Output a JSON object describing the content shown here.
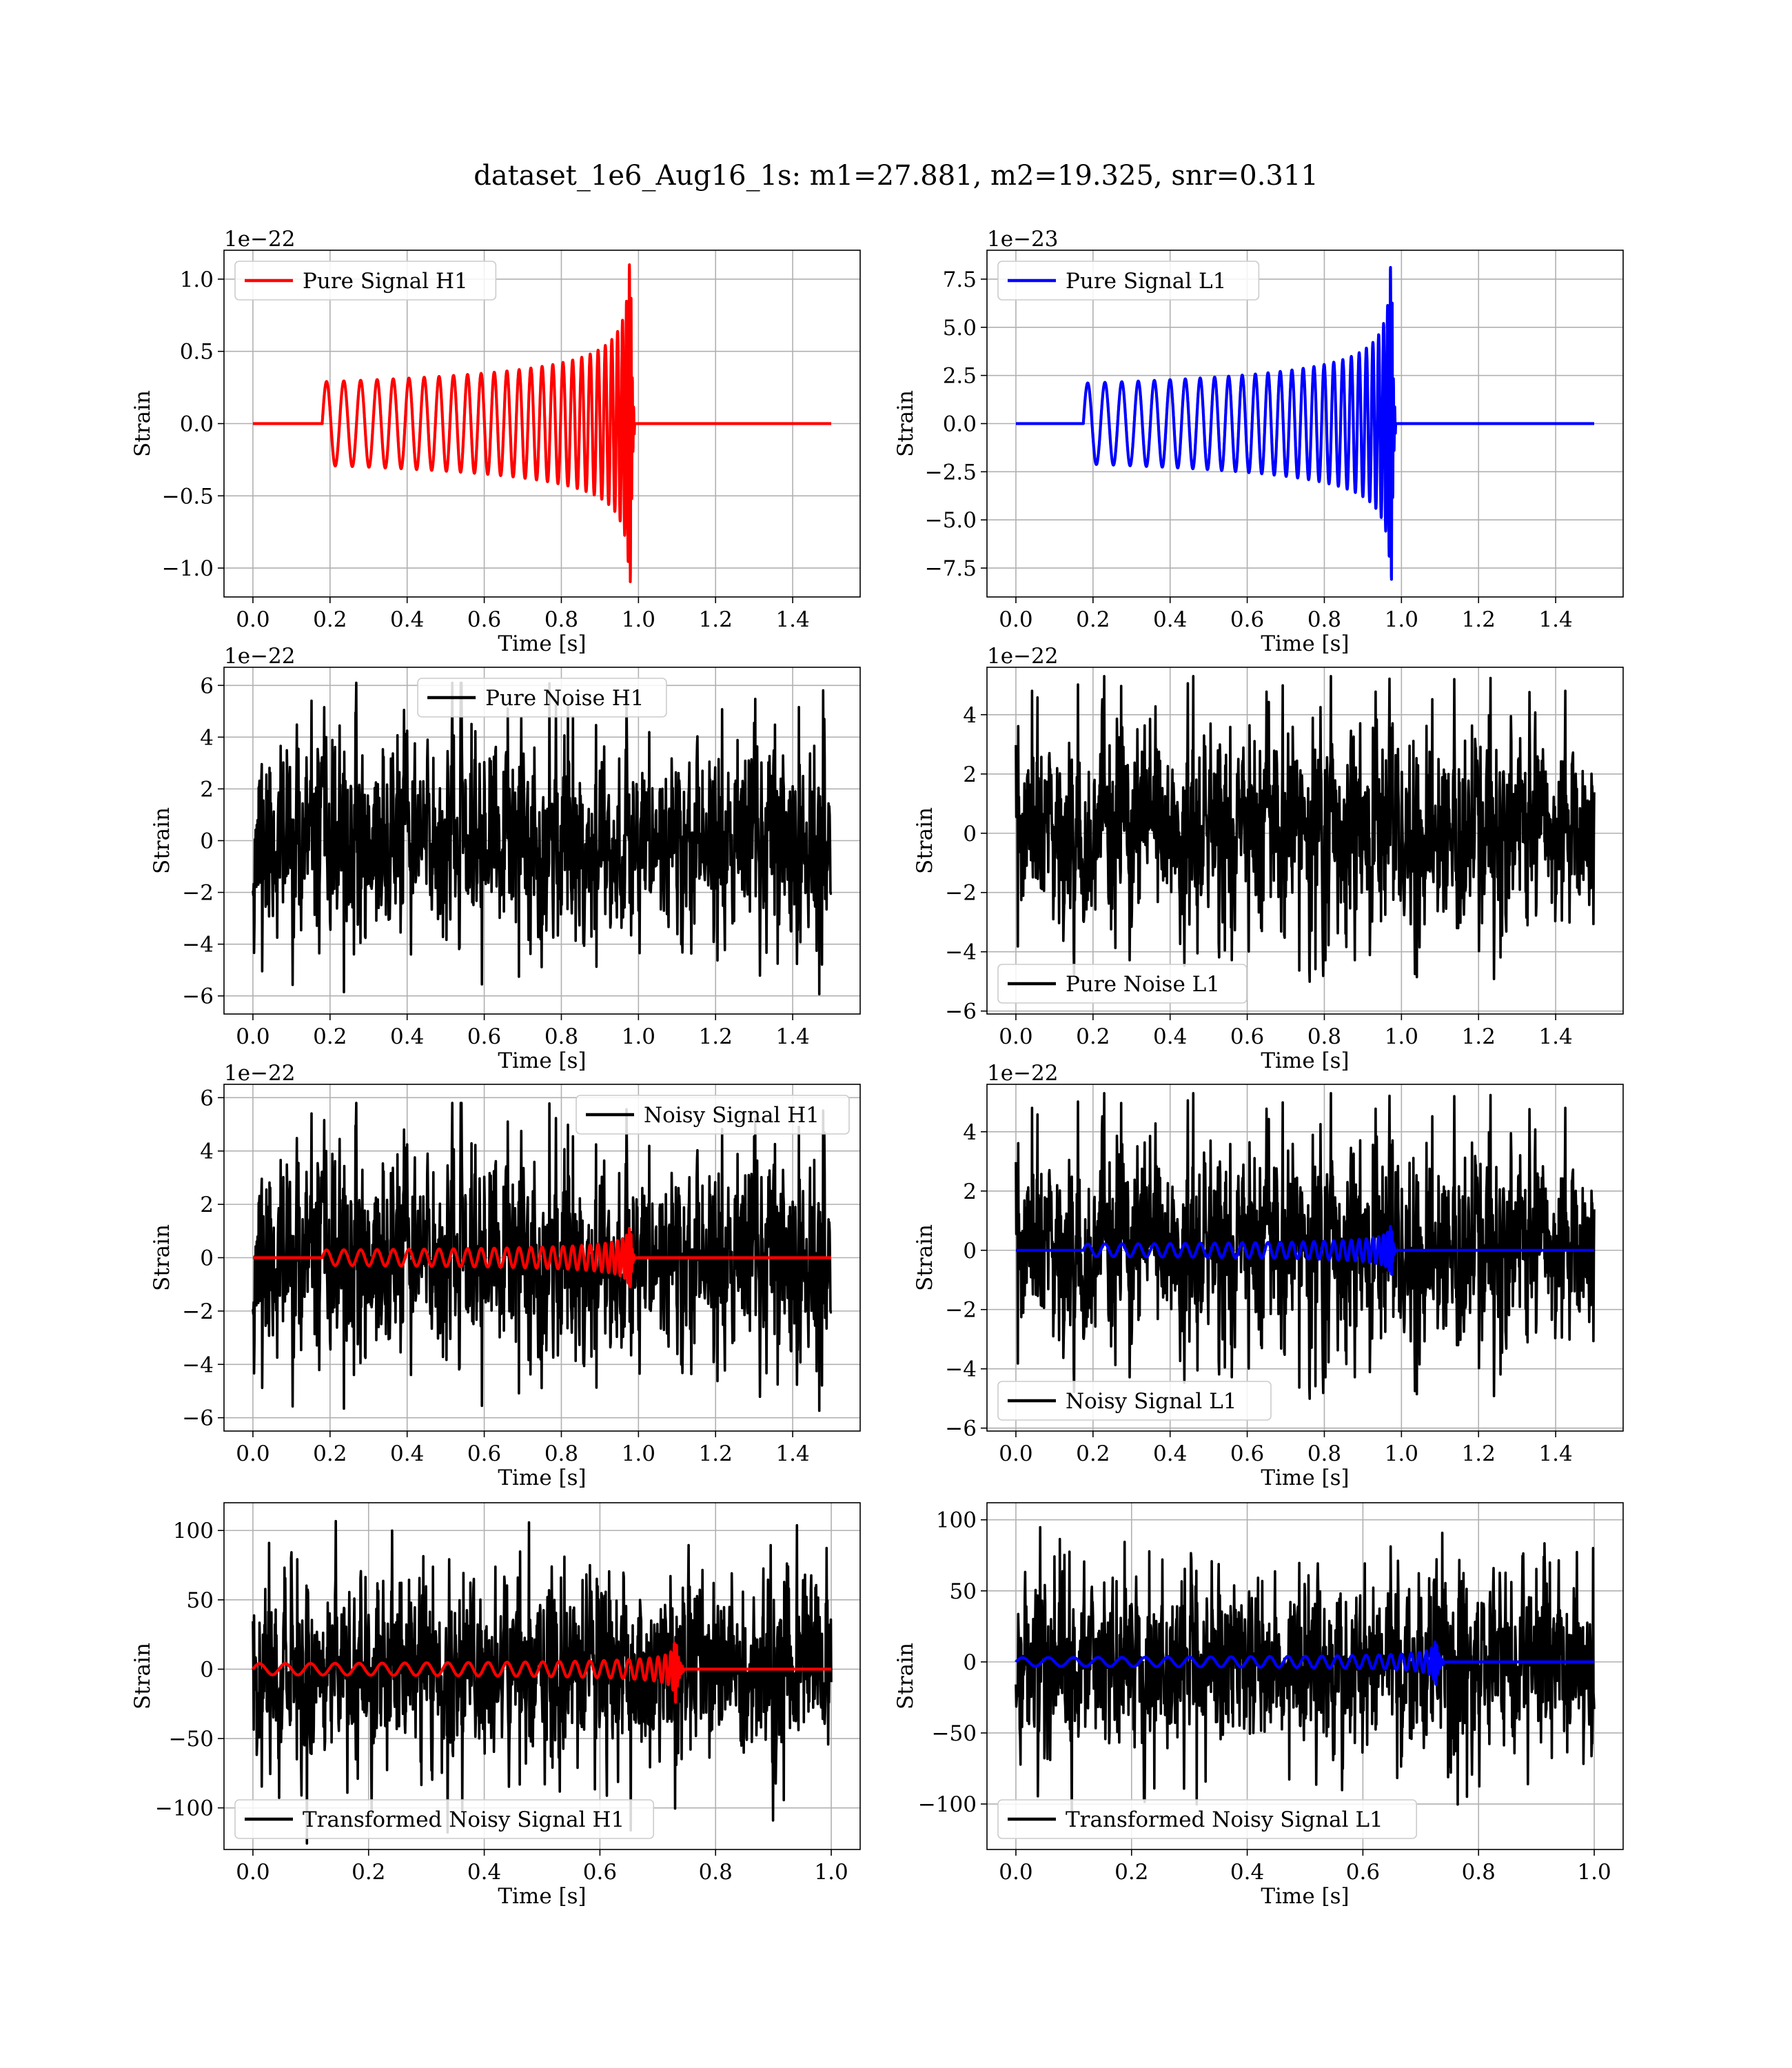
{
  "suptitle": "dataset_1e6_Aug16_1s: m1=27.881, m2=19.325, snr=0.311",
  "colors": {
    "h1_signal": "#ff0000",
    "l1_signal": "#0000ff",
    "noise": "#000000",
    "grid": "#b0b0b0"
  },
  "chart_data": [
    {
      "id": "pure-signal-h1",
      "type": "line",
      "legend": "Pure Signal H1",
      "legend_loc": "upper left",
      "xlabel": "Time [s]",
      "ylabel": "Strain",
      "offset_text": "1e−22",
      "xlim": [
        -0.075,
        1.575
      ],
      "ylim": [
        -1.2,
        1.2
      ],
      "xticks": [
        0.0,
        0.2,
        0.4,
        0.6,
        0.8,
        1.0,
        1.2,
        1.4
      ],
      "xticklabels": [
        "0.0",
        "0.2",
        "0.4",
        "0.6",
        "0.8",
        "1.0",
        "1.2",
        "1.4"
      ],
      "yticks": [
        -1.0,
        -0.5,
        0.0,
        0.5,
        1.0
      ],
      "yticklabels": [
        "−1.0",
        "−0.5",
        "0.0",
        "0.5",
        "1.0"
      ],
      "grid": true,
      "series": [
        {
          "kind": "chirp",
          "color": "#ff0000",
          "x_start": 0.0,
          "x_end": 1.5,
          "t_on": 0.18,
          "t_merge": 0.98,
          "t_off": 0.99,
          "amp_start": 0.29,
          "amp_peak": 1.1,
          "f_start": 22,
          "f_end": 300
        }
      ]
    },
    {
      "id": "pure-signal-l1",
      "type": "line",
      "legend": "Pure Signal L1",
      "legend_loc": "upper left",
      "xlabel": "Time [s]",
      "ylabel": "Strain",
      "offset_text": "1e−23",
      "xlim": [
        -0.075,
        1.575
      ],
      "ylim": [
        -9.0,
        9.0
      ],
      "xticks": [
        0.0,
        0.2,
        0.4,
        0.6,
        0.8,
        1.0,
        1.2,
        1.4
      ],
      "xticklabels": [
        "0.0",
        "0.2",
        "0.4",
        "0.6",
        "0.8",
        "1.0",
        "1.2",
        "1.4"
      ],
      "yticks": [
        -7.5,
        -5.0,
        -2.5,
        0.0,
        2.5,
        5.0,
        7.5
      ],
      "yticklabels": [
        "−7.5",
        "−5.0",
        "−2.5",
        "0.0",
        "2.5",
        "5.0",
        "7.5"
      ],
      "grid": true,
      "series": [
        {
          "kind": "chirp",
          "color": "#0000ff",
          "x_start": 0.0,
          "x_end": 1.5,
          "t_on": 0.175,
          "t_merge": 0.975,
          "t_off": 0.985,
          "amp_start": 2.1,
          "amp_peak": 8.2,
          "f_start": 22,
          "f_end": 300
        }
      ]
    },
    {
      "id": "pure-noise-h1",
      "type": "line",
      "legend": "Pure Noise H1",
      "legend_loc": "upper center",
      "xlabel": "Time [s]",
      "ylabel": "Strain",
      "offset_text": "1e−22",
      "xlim": [
        -0.075,
        1.575
      ],
      "ylim": [
        -6.7,
        6.7
      ],
      "xticks": [
        0.0,
        0.2,
        0.4,
        0.6,
        0.8,
        1.0,
        1.2,
        1.4
      ],
      "xticklabels": [
        "0.0",
        "0.2",
        "0.4",
        "0.6",
        "0.8",
        "1.0",
        "1.2",
        "1.4"
      ],
      "yticks": [
        -6,
        -4,
        -2,
        0,
        2,
        4,
        6
      ],
      "yticklabels": [
        "−6",
        "−4",
        "−2",
        "0",
        "2",
        "4",
        "6"
      ],
      "grid": true,
      "series": [
        {
          "kind": "noise",
          "color": "#000000",
          "x_start": 0.0,
          "x_end": 1.5,
          "sigma": 1.7,
          "max": 6.1,
          "min": -6.1,
          "seed": 11
        }
      ]
    },
    {
      "id": "pure-noise-l1",
      "type": "line",
      "legend": "Pure Noise L1",
      "legend_loc": "lower left",
      "xlabel": "Time [s]",
      "ylabel": "Strain",
      "offset_text": "1e−22",
      "xlim": [
        -0.075,
        1.575
      ],
      "ylim": [
        -6.1,
        5.6
      ],
      "xticks": [
        0.0,
        0.2,
        0.4,
        0.6,
        0.8,
        1.0,
        1.2,
        1.4
      ],
      "xticklabels": [
        "0.0",
        "0.2",
        "0.4",
        "0.6",
        "0.8",
        "1.0",
        "1.2",
        "1.4"
      ],
      "yticks": [
        -6,
        -4,
        -2,
        0,
        2,
        4
      ],
      "yticklabels": [
        "−6",
        "−4",
        "−2",
        "0",
        "2",
        "4"
      ],
      "grid": true,
      "series": [
        {
          "kind": "noise",
          "color": "#000000",
          "x_start": 0.0,
          "x_end": 1.5,
          "sigma": 1.5,
          "max": 5.3,
          "min": -5.6,
          "seed": 23
        }
      ]
    },
    {
      "id": "noisy-signal-h1",
      "type": "line",
      "legend": "Noisy Signal H1",
      "legend_loc": "upper right",
      "xlabel": "Time [s]",
      "ylabel": "Strain",
      "offset_text": "1e−22",
      "xlim": [
        -0.075,
        1.575
      ],
      "ylim": [
        -6.5,
        6.5
      ],
      "xticks": [
        0.0,
        0.2,
        0.4,
        0.6,
        0.8,
        1.0,
        1.2,
        1.4
      ],
      "xticklabels": [
        "0.0",
        "0.2",
        "0.4",
        "0.6",
        "0.8",
        "1.0",
        "1.2",
        "1.4"
      ],
      "yticks": [
        -6,
        -4,
        -2,
        0,
        2,
        4,
        6
      ],
      "yticklabels": [
        "−6",
        "−4",
        "−2",
        "0",
        "2",
        "4",
        "6"
      ],
      "grid": true,
      "series": [
        {
          "kind": "noise",
          "color": "#000000",
          "x_start": 0.0,
          "x_end": 1.5,
          "sigma": 1.7,
          "max": 5.8,
          "min": -5.9,
          "seed": 11
        },
        {
          "kind": "chirp",
          "color": "#ff0000",
          "x_start": 0.0,
          "x_end": 1.5,
          "t_on": 0.18,
          "t_merge": 0.98,
          "t_off": 0.99,
          "amp_start": 0.29,
          "amp_peak": 1.1,
          "f_start": 22,
          "f_end": 300
        }
      ]
    },
    {
      "id": "noisy-signal-l1",
      "type": "line",
      "legend": "Noisy Signal L1",
      "legend_loc": "lower left",
      "xlabel": "Time [s]",
      "ylabel": "Strain",
      "offset_text": "1e−22",
      "xlim": [
        -0.075,
        1.575
      ],
      "ylim": [
        -6.1,
        5.6
      ],
      "xticks": [
        0.0,
        0.2,
        0.4,
        0.6,
        0.8,
        1.0,
        1.2,
        1.4
      ],
      "xticklabels": [
        "0.0",
        "0.2",
        "0.4",
        "0.6",
        "0.8",
        "1.0",
        "1.2",
        "1.4"
      ],
      "yticks": [
        -6,
        -4,
        -2,
        0,
        2,
        4
      ],
      "yticklabels": [
        "−6",
        "−4",
        "−2",
        "0",
        "2",
        "4"
      ],
      "grid": true,
      "series": [
        {
          "kind": "noise",
          "color": "#000000",
          "x_start": 0.0,
          "x_end": 1.5,
          "sigma": 1.5,
          "max": 5.3,
          "min": -5.6,
          "seed": 23
        },
        {
          "kind": "chirp",
          "color": "#0000ff",
          "x_start": 0.0,
          "x_end": 1.5,
          "t_on": 0.175,
          "t_merge": 0.975,
          "t_off": 0.985,
          "amp_start": 0.21,
          "amp_peak": 0.82,
          "f_start": 22,
          "f_end": 300
        }
      ]
    },
    {
      "id": "transformed-noisy-signal-h1",
      "type": "line",
      "legend": "Transformed Noisy Signal H1",
      "legend_loc": "lower left",
      "xlabel": "Time [s]",
      "ylabel": "Strain",
      "offset_text": "",
      "xlim": [
        -0.05,
        1.05
      ],
      "ylim": [
        -130,
        120
      ],
      "xticks": [
        0.0,
        0.2,
        0.4,
        0.6,
        0.8,
        1.0
      ],
      "xticklabels": [
        "0.0",
        "0.2",
        "0.4",
        "0.6",
        "0.8",
        "1.0"
      ],
      "yticks": [
        -100,
        -50,
        0,
        50,
        100
      ],
      "yticklabels": [
        "−100",
        "−50",
        "0",
        "50",
        "100"
      ],
      "grid": true,
      "series": [
        {
          "kind": "noise",
          "color": "#000000",
          "x_start": 0.0,
          "x_end": 1.0,
          "sigma": 30,
          "max": 110,
          "min": -127,
          "seed": 37
        },
        {
          "kind": "chirp",
          "color": "#ff0000",
          "x_start": 0.0,
          "x_end": 1.0,
          "t_on": 0.0,
          "t_merge": 0.73,
          "t_off": 0.745,
          "amp_start": 4,
          "amp_peak": 28,
          "f_start": 22,
          "f_end": 300
        }
      ]
    },
    {
      "id": "transformed-noisy-signal-l1",
      "type": "line",
      "legend": "Transformed Noisy Signal L1",
      "legend_loc": "lower left",
      "xlabel": "Time [s]",
      "ylabel": "Strain",
      "offset_text": "",
      "xlim": [
        -0.05,
        1.05
      ],
      "ylim": [
        -132,
        112
      ],
      "xticks": [
        0.0,
        0.2,
        0.4,
        0.6,
        0.8,
        1.0
      ],
      "xticklabels": [
        "0.0",
        "0.2",
        "0.4",
        "0.6",
        "0.8",
        "1.0"
      ],
      "yticks": [
        -100,
        -50,
        0,
        50,
        100
      ],
      "yticklabels": [
        "−100",
        "−50",
        "0",
        "50",
        "100"
      ],
      "grid": true,
      "series": [
        {
          "kind": "noise",
          "color": "#000000",
          "x_start": 0.0,
          "x_end": 1.0,
          "sigma": 28,
          "max": 105,
          "min": -117,
          "seed": 41
        },
        {
          "kind": "chirp",
          "color": "#0000ff",
          "x_start": 0.0,
          "x_end": 1.0,
          "t_on": 0.0,
          "t_merge": 0.725,
          "t_off": 0.74,
          "amp_start": 3,
          "amp_peak": 21,
          "f_start": 22,
          "f_end": 300
        }
      ]
    }
  ]
}
